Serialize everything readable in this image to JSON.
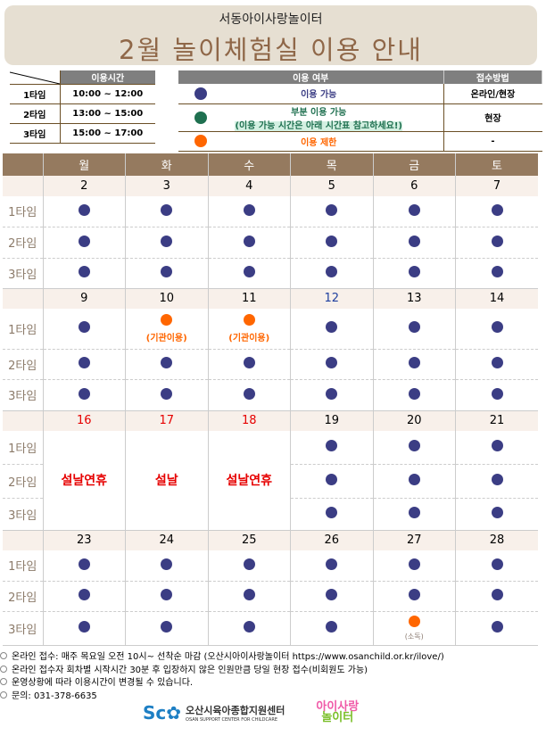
{
  "header": {
    "subtitle": "서동아이사랑놀이터",
    "title": "2월 놀이체험실 이용 안내"
  },
  "time_table": {
    "header": "이용시간",
    "rows": [
      {
        "label": "1타임",
        "time": "10:00 ~ 12:00"
      },
      {
        "label": "2타임",
        "time": "13:00 ~ 15:00"
      },
      {
        "label": "3타임",
        "time": "15:00 ~ 17:00"
      }
    ]
  },
  "usage_legend": {
    "header_status": "이용 여부",
    "header_method": "접수방법",
    "rows": [
      {
        "color": "#3b3d84",
        "label": "이용 가능",
        "label2": "",
        "method": "온라인/현장"
      },
      {
        "color": "#1f7050",
        "label": "부분 이용 가능",
        "label2": "(이용 가능 시간은 아래 시간표 참고하세요!)",
        "method": "현장"
      },
      {
        "color": "#ff6600",
        "label": "이용 제한",
        "label2": "",
        "method": "-"
      }
    ]
  },
  "colors": {
    "available": "#3b3d84",
    "partial": "#1f7050",
    "limited": "#ff6600",
    "holiday": "#e60000",
    "header_bg": "#957a5f"
  },
  "calendar": {
    "weekdays": [
      "월",
      "화",
      "수",
      "목",
      "금",
      "토"
    ],
    "slot_labels": [
      "1타임",
      "2타임",
      "3타임"
    ],
    "weeks": [
      {
        "days": [
          {
            "date": "2",
            "slots": [
              "a",
              "a",
              "a"
            ]
          },
          {
            "date": "3",
            "slots": [
              "a",
              "a",
              "a"
            ]
          },
          {
            "date": "4",
            "slots": [
              "a",
              "a",
              "a"
            ]
          },
          {
            "date": "5",
            "slots": [
              "a",
              "a",
              "a"
            ]
          },
          {
            "date": "6",
            "slots": [
              "a",
              "a",
              "a"
            ]
          },
          {
            "date": "7",
            "slots": [
              "a",
              "a",
              "a"
            ]
          }
        ]
      },
      {
        "days": [
          {
            "date": "9",
            "slots": [
              "a",
              "a",
              "a"
            ]
          },
          {
            "date": "10",
            "slots": [
              "l",
              "a",
              "a"
            ],
            "notes": [
              "(기관이용)",
              "",
              ""
            ]
          },
          {
            "date": "11",
            "slots": [
              "l",
              "a",
              "a"
            ],
            "notes": [
              "(기관이용)",
              "",
              ""
            ]
          },
          {
            "date": "12",
            "date_color": "#1f3f9f",
            "slots": [
              "a",
              "a",
              "a"
            ]
          },
          {
            "date": "13",
            "slots": [
              "a",
              "a",
              "a"
            ]
          },
          {
            "date": "14",
            "slots": [
              "a",
              "a",
              "a"
            ]
          }
        ]
      },
      {
        "days": [
          {
            "date": "16",
            "red": true,
            "holiday": "설날연휴"
          },
          {
            "date": "17",
            "red": true,
            "holiday": "설날"
          },
          {
            "date": "18",
            "red": true,
            "holiday": "설날연휴"
          },
          {
            "date": "19",
            "slots": [
              "a",
              "a",
              "a"
            ]
          },
          {
            "date": "20",
            "slots": [
              "a",
              "a",
              "a"
            ]
          },
          {
            "date": "21",
            "slots": [
              "a",
              "a",
              "a"
            ]
          }
        ]
      },
      {
        "days": [
          {
            "date": "23",
            "slots": [
              "a",
              "a",
              "a"
            ]
          },
          {
            "date": "24",
            "slots": [
              "a",
              "a",
              "a"
            ]
          },
          {
            "date": "25",
            "slots": [
              "a",
              "a",
              "a"
            ]
          },
          {
            "date": "26",
            "slots": [
              "a",
              "a",
              "a"
            ]
          },
          {
            "date": "27",
            "slots": [
              "a",
              "a",
              "l"
            ],
            "notes": [
              "",
              "",
              "(소독)"
            ]
          },
          {
            "date": "28",
            "slots": [
              "a",
              "a",
              "a"
            ]
          }
        ]
      }
    ]
  },
  "notes": [
    "온라인 접수: 매주 목요일 오전 10시~ 선착순 마감 (오산시아이사랑놀이터 https://www.osanchild.or.kr/ilove/)",
    "온라인 접수자 회차별 시작시간 30분 후 입장하지 않은 인원만큼 당일 현장 접수(비회원도 가능)",
    "운영상황에 따라 이용시간이 변경될 수 있습니다.",
    "문의: 031-378-6635"
  ],
  "logos": {
    "center_name": "오산시육아종합지원센터",
    "center_name_en": "OSAN SUPPORT CENTER FOR CHILDCARE",
    "playground_line1": "아이사랑",
    "playground_line2": "놀이터"
  }
}
